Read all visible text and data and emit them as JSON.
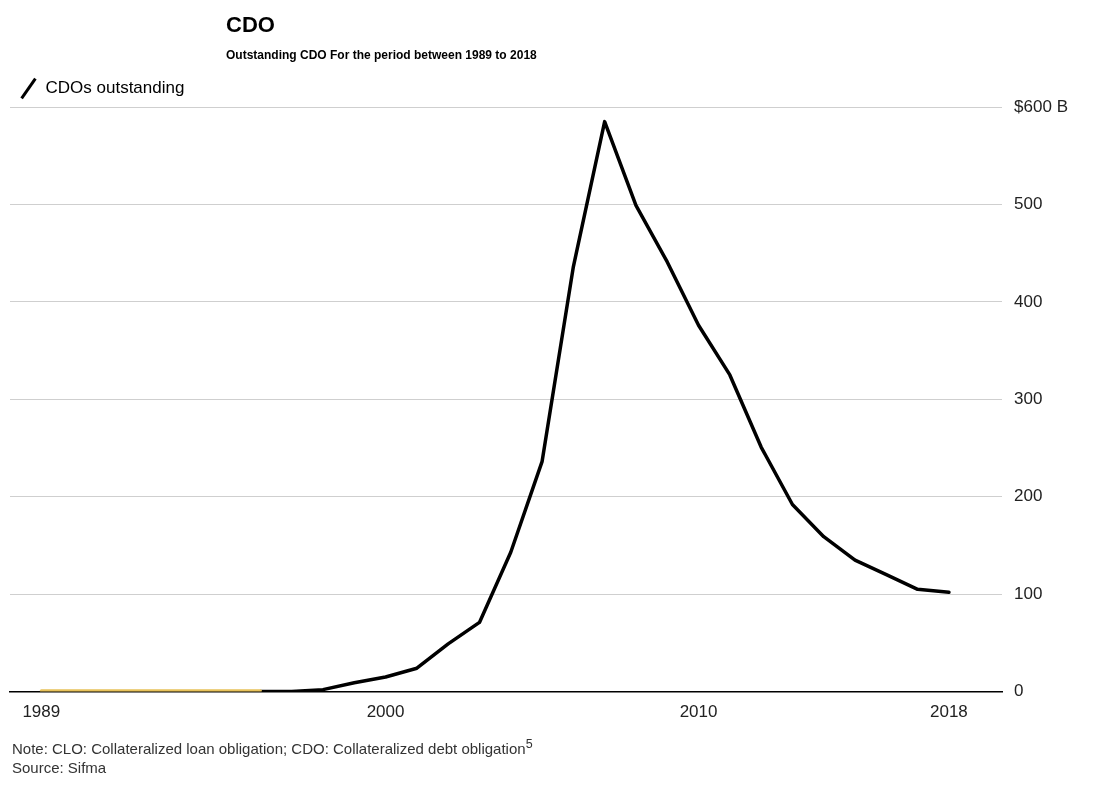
{
  "chart_data": {
    "type": "line",
    "title": "CDO",
    "subtitle": "Outstanding CDO  For the period between 1989 to 2018",
    "series": [
      {
        "name": "CDOs outstanding",
        "color": "#000000",
        "x": [
          1996,
          1997,
          1998,
          1999,
          2000,
          2001,
          2002,
          2003,
          2004,
          2005,
          2006,
          2007,
          2008,
          2009,
          2010,
          2011,
          2012,
          2013,
          2014,
          2015,
          2016,
          2017,
          2018
        ],
        "values": [
          0,
          0,
          2,
          9,
          15,
          24,
          49,
          71,
          143,
          236,
          436,
          585,
          499,
          441,
          376,
          325,
          251,
          192,
          159,
          135,
          120,
          105,
          102
        ]
      },
      {
        "color": "#e8c25a",
        "x": [
          1989,
          1990,
          1991,
          1992,
          1993,
          1994,
          1995,
          1996
        ],
        "values": [
          1,
          1,
          1,
          1,
          1,
          1,
          1,
          1
        ]
      }
    ],
    "xlim": [
      1988,
      2019.7
    ],
    "xticks": [
      1989,
      2000,
      2010,
      2018
    ],
    "ylim": [
      0,
      600
    ],
    "yticks": [
      0,
      100,
      200,
      300,
      400,
      500,
      {
        "value": 600,
        "label": "$600 B"
      }
    ],
    "grid": "y",
    "legend": "top left",
    "marker": "none",
    "line_style": "solid",
    "annotations": [
      "Note: CLO: Collateralized loan obligation; CDO: Collateralized debt obligation$^{5}$",
      "Source: Sifma"
    ]
  }
}
